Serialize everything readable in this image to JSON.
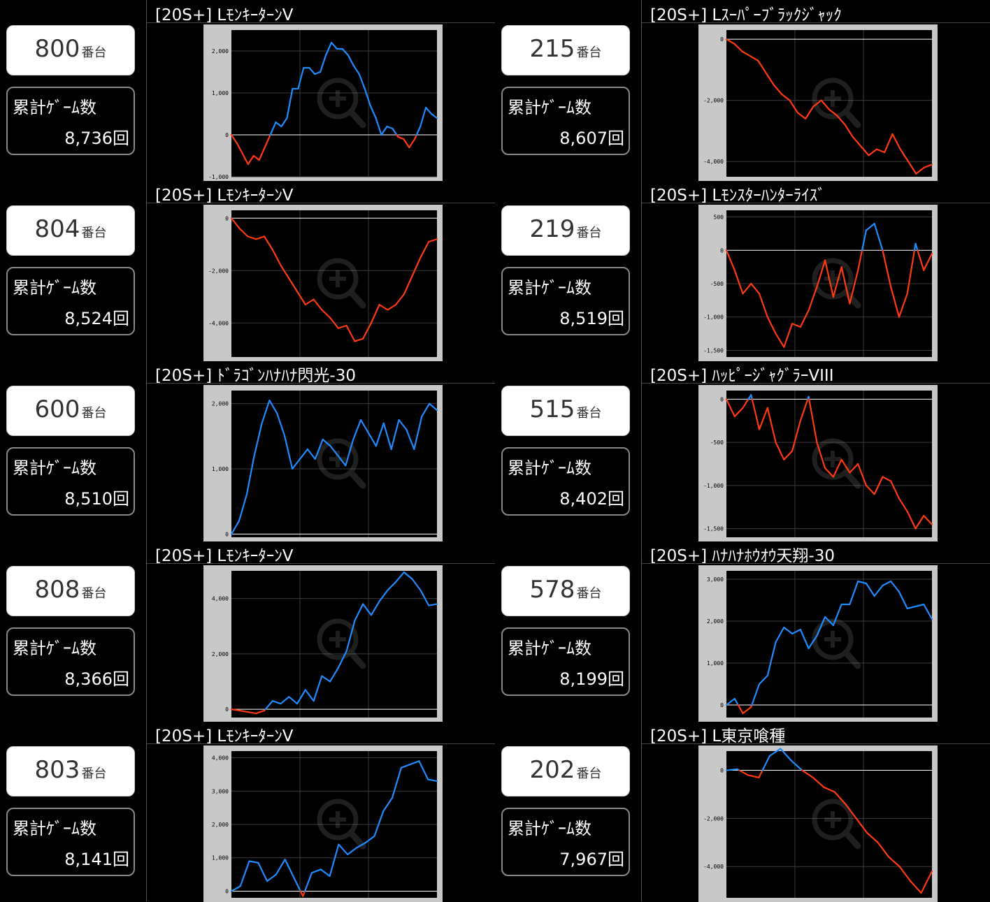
{
  "entries": [
    {
      "number": "800",
      "suffix": "番台",
      "games_label": "累計ｹﾞｰﾑ数",
      "games": "8,736回",
      "title": "[20S+] LﾓﾝｷｰﾀｰﾝV"
    },
    {
      "number": "215",
      "suffix": "番台",
      "games_label": "累計ｹﾞｰﾑ数",
      "games": "8,607回",
      "title": "[20S+] Lｽｰﾊﾟｰﾌﾞﾗｯｸｼﾞｬｯｸ"
    },
    {
      "number": "804",
      "suffix": "番台",
      "games_label": "累計ｹﾞｰﾑ数",
      "games": "8,524回",
      "title": "[20S+] LﾓﾝｷｰﾀｰﾝV"
    },
    {
      "number": "219",
      "suffix": "番台",
      "games_label": "累計ｹﾞｰﾑ数",
      "games": "8,519回",
      "title": "[20S+] Lﾓﾝｽﾀｰﾊﾝﾀｰﾗｲｽﾞ"
    },
    {
      "number": "600",
      "suffix": "番台",
      "games_label": "累計ｹﾞｰﾑ数",
      "games": "8,510回",
      "title": "[20S+] ﾄﾞﾗｺﾞﾝﾊﾅﾊﾅ閃光-30"
    },
    {
      "number": "515",
      "suffix": "番台",
      "games_label": "累計ｹﾞｰﾑ数",
      "games": "8,402回",
      "title": "[20S+] ﾊｯﾋﾟｰｼﾞｬｸﾞﾗｰVIII"
    },
    {
      "number": "808",
      "suffix": "番台",
      "games_label": "累計ｹﾞｰﾑ数",
      "games": "8,366回",
      "title": "[20S+] LﾓﾝｷｰﾀｰﾝV"
    },
    {
      "number": "578",
      "suffix": "番台",
      "games_label": "累計ｹﾞｰﾑ数",
      "games": "8,199回",
      "title": "[20S+] ﾊﾅﾊﾅﾎｳｵｳ天翔-30"
    },
    {
      "number": "803",
      "suffix": "番台",
      "games_label": "累計ｹﾞｰﾑ数",
      "games": "8,141回",
      "title": "[20S+] LﾓﾝｷｰﾀｰﾝV"
    },
    {
      "number": "202",
      "suffix": "番台",
      "games_label": "累計ｹﾞｰﾑ数",
      "games": "7,967回",
      "title": "[20S+] L東京喰種"
    }
  ],
  "colors": {
    "positive": "#1e8cff",
    "negative": "#ff3a10",
    "plot_bg": "#000000",
    "frame": "#c8c8c8",
    "grid": "#3a3a3a",
    "zero_line": "#ffffff"
  },
  "chart_data": [
    {
      "type": "line",
      "ylim": [
        -1000,
        2500
      ],
      "yticks": [
        -1000,
        0,
        1000,
        2000
      ],
      "ytick_labels": [
        "-1,000",
        "0",
        "1,000",
        "2,000"
      ],
      "values": [
        0,
        -200,
        -450,
        -700,
        -500,
        -600,
        -300,
        0,
        300,
        200,
        400,
        1100,
        1100,
        1600,
        1600,
        1450,
        1500,
        1900,
        2200,
        2050,
        2050,
        1900,
        1650,
        1450,
        1100,
        700,
        400,
        0,
        200,
        150,
        -50,
        -100,
        -300,
        -100,
        200,
        650,
        500,
        400
      ]
    },
    {
      "type": "line",
      "ylim": [
        -4500,
        300
      ],
      "yticks": [
        -4000,
        -2000,
        0
      ],
      "ytick_labels": [
        "-4,000",
        "-2,000",
        "0"
      ],
      "values": [
        0,
        -150,
        -400,
        -550,
        -700,
        -1100,
        -1500,
        -1800,
        -2000,
        -2400,
        -2600,
        -2200,
        -2000,
        -2300,
        -2500,
        -2800,
        -3200,
        -3500,
        -3800,
        -3600,
        -3700,
        -3100,
        -3600,
        -4000,
        -4400,
        -4200,
        -4100
      ]
    },
    {
      "type": "line",
      "ylim": [
        -5300,
        300
      ],
      "yticks": [
        -4000,
        -2000,
        0
      ],
      "ytick_labels": [
        "-4,000",
        "-2,000",
        "0"
      ],
      "values": [
        0,
        -400,
        -700,
        -800,
        -700,
        -1200,
        -1800,
        -2300,
        -2800,
        -3300,
        -3100,
        -3500,
        -3800,
        -4200,
        -4100,
        -4700,
        -4600,
        -4000,
        -3300,
        -3500,
        -3300,
        -2900,
        -2200,
        -1500,
        -900,
        -800
      ]
    },
    {
      "type": "line",
      "ylim": [
        -1600,
        600
      ],
      "yticks": [
        -1500,
        -1000,
        -500,
        0,
        500
      ],
      "ytick_labels": [
        "-1,500",
        "-1,000",
        "-500",
        "0",
        "500"
      ],
      "values": [
        0,
        -300,
        -650,
        -500,
        -650,
        -1000,
        -1250,
        -1450,
        -1100,
        -1150,
        -900,
        -550,
        -150,
        -700,
        -250,
        -800,
        -300,
        300,
        400,
        0,
        -550,
        -1000,
        -650,
        100,
        -300,
        -50
      ]
    },
    {
      "type": "line",
      "ylim": [
        -50,
        2200
      ],
      "yticks": [
        0,
        1000,
        2000
      ],
      "ytick_labels": [
        "0",
        "1,000",
        "2,000"
      ],
      "values": [
        0,
        200,
        600,
        1200,
        1700,
        2050,
        1850,
        1500,
        1000,
        1150,
        1300,
        1150,
        1450,
        1350,
        1200,
        1050,
        1450,
        1750,
        1550,
        1350,
        1700,
        1300,
        1750,
        1600,
        1300,
        1800,
        2000,
        1900
      ]
    },
    {
      "type": "line",
      "ylim": [
        -1600,
        100
      ],
      "yticks": [
        -1500,
        -1000,
        -500,
        0
      ],
      "ytick_labels": [
        "-1,500",
        "-1,000",
        "-500",
        "0"
      ],
      "values": [
        0,
        -200,
        -100,
        50,
        -350,
        -100,
        -500,
        -700,
        -600,
        -250,
        30,
        -500,
        -800,
        -900,
        -700,
        -850,
        -750,
        -1000,
        -1100,
        -900,
        -950,
        -1150,
        -1300,
        -1500,
        -1350,
        -1450
      ]
    },
    {
      "type": "line",
      "ylim": [
        -300,
        5000
      ],
      "yticks": [
        0,
        2000,
        4000
      ],
      "ytick_labels": [
        "0",
        "2,000",
        "4,000"
      ],
      "values": [
        0,
        -50,
        -100,
        -150,
        -50,
        300,
        200,
        450,
        200,
        700,
        300,
        1200,
        1000,
        1500,
        2100,
        3200,
        3800,
        3400,
        3900,
        4300,
        4600,
        4950,
        4700,
        4300,
        3750,
        3800
      ]
    },
    {
      "type": "line",
      "ylim": [
        -300,
        3200
      ],
      "yticks": [
        0,
        1000,
        2000,
        3000
      ],
      "ytick_labels": [
        "0",
        "1,000",
        "2,000",
        "3,000"
      ],
      "values": [
        0,
        150,
        -200,
        -50,
        500,
        700,
        1500,
        1850,
        1700,
        1800,
        1350,
        1650,
        2100,
        1900,
        2400,
        2400,
        2950,
        2900,
        2600,
        2850,
        2950,
        2700,
        2300,
        2350,
        2400,
        2050
      ]
    },
    {
      "type": "line",
      "ylim": [
        -200,
        4200
      ],
      "yticks": [
        0,
        1000,
        2000,
        3000,
        4000
      ],
      "ytick_labels": [
        "0",
        "1,000",
        "2,000",
        "3,000",
        "4,000"
      ],
      "values": [
        0,
        150,
        900,
        850,
        300,
        500,
        950,
        400,
        -150,
        550,
        650,
        450,
        1400,
        1100,
        1300,
        1450,
        1650,
        2400,
        2800,
        3700,
        3800,
        3900,
        3350,
        3300
      ]
    },
    {
      "type": "line",
      "ylim": [
        -5300,
        800
      ],
      "yticks": [
        -4000,
        -2000,
        0
      ],
      "ytick_labels": [
        "-4,000",
        "-2,000",
        "0"
      ],
      "values": [
        0,
        50,
        -200,
        -300,
        600,
        900,
        400,
        0,
        -300,
        -700,
        -900,
        -1400,
        -2000,
        -2600,
        -3000,
        -3600,
        -4000,
        -4600,
        -5100,
        -4200
      ]
    }
  ]
}
